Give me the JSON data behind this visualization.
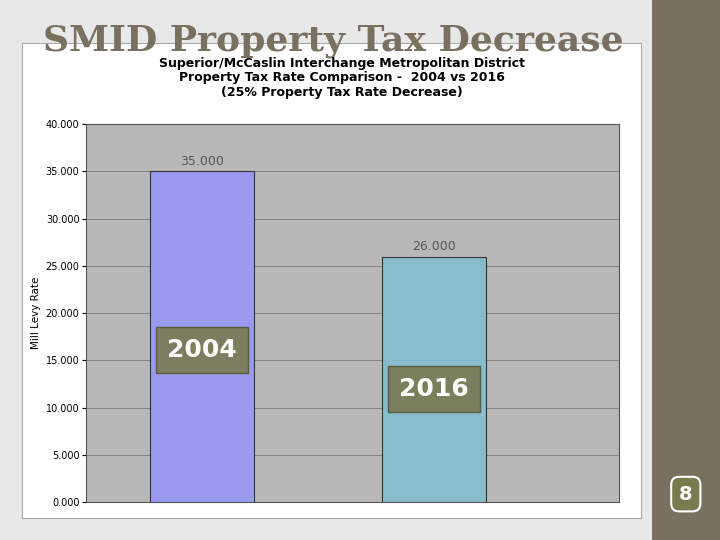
{
  "main_title": "SMID Property Tax Decrease",
  "chart_title_line1": "Superior/McCaslin Interchange Metropolitan District",
  "chart_title_line2": "Property Tax Rate Comparison -  2004 vs 2016",
  "chart_title_line3": "(25% Property Tax Rate Decrease)",
  "categories": [
    "2004",
    "2016"
  ],
  "values": [
    35.0,
    26.0
  ],
  "bar_colors": [
    "#9999ee",
    "#88bbcc"
  ],
  "ylabel": "Mill Levy Rate",
  "ylim": [
    0,
    40
  ],
  "yticks": [
    0.0,
    5.0,
    10.0,
    15.0,
    20.0,
    25.0,
    30.0,
    35.0,
    40.0
  ],
  "slide_bg": "#e8e8e8",
  "chart_bg": "#b8b8b8",
  "frame_bg": "#ffffff",
  "label_box_color": "#7a7a50",
  "label_text_color": "#ffffff",
  "value_label_color": "#555555",
  "sidebar_color": "#7a7060",
  "page_number": "8",
  "main_title_color": "#7a7060",
  "chart_border_color": "#888888",
  "grid_color": "#000000"
}
